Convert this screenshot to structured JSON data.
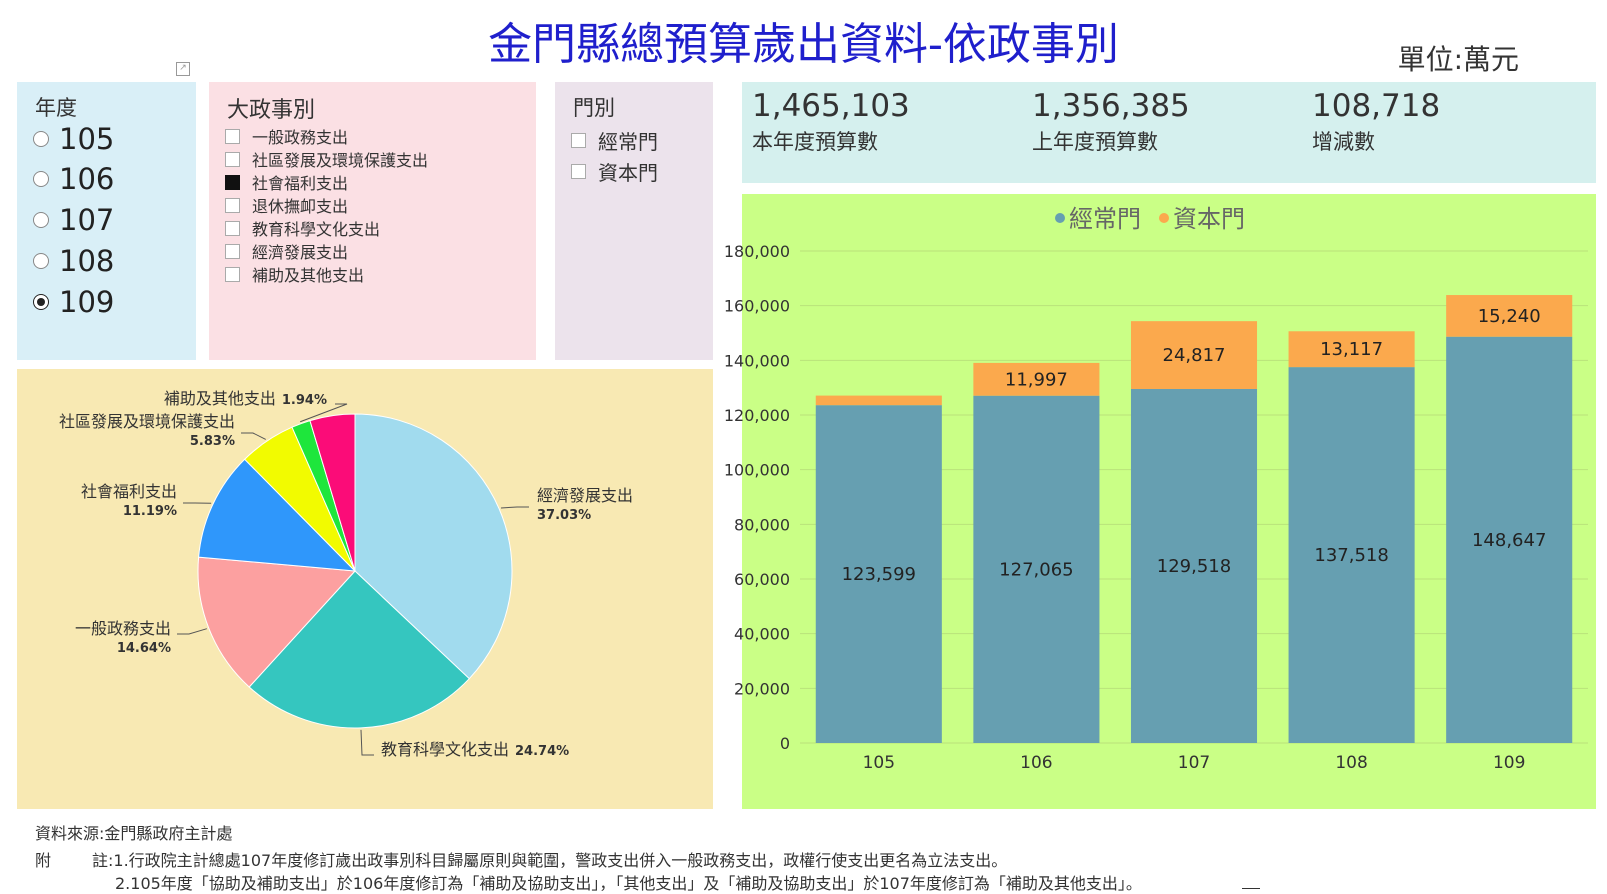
{
  "header": {
    "title": "金門縣總預算歲出資料-依政事別",
    "unit": "單位:萬元"
  },
  "year_slicer": {
    "title": "年度",
    "items": [
      {
        "label": "105",
        "selected": false
      },
      {
        "label": "106",
        "selected": false
      },
      {
        "label": "107",
        "selected": false
      },
      {
        "label": "108",
        "selected": false
      },
      {
        "label": "109",
        "selected": true
      }
    ]
  },
  "policy_slicer": {
    "title": "大政事別",
    "items": [
      {
        "label": "一般政務支出",
        "checked": false
      },
      {
        "label": "社區發展及環境保護支出",
        "checked": false
      },
      {
        "label": "社會福利支出",
        "checked": true
      },
      {
        "label": "退休撫卹支出",
        "checked": false
      },
      {
        "label": "教育科學文化支出",
        "checked": false
      },
      {
        "label": "經濟發展支出",
        "checked": false
      },
      {
        "label": "補助及其他支出",
        "checked": false
      }
    ]
  },
  "type_slicer": {
    "title": "門別",
    "items": [
      {
        "label": "經常門",
        "checked": false
      },
      {
        "label": "資本門",
        "checked": false
      }
    ]
  },
  "kpis": [
    {
      "value": "1,465,103",
      "label": "本年度預算數"
    },
    {
      "value": "1,356,385",
      "label": "上年度預算數"
    },
    {
      "value": "108,718",
      "label": "增減數"
    }
  ],
  "footer": {
    "source": "資料來源:金門縣政府主計處",
    "note_prefix": "附",
    "note1": "註:1.行政院主計總處107年度修訂歲出政事別科目歸屬原則與範圍，警政支出併入一般政務支出，政權行使支出更名為立法支出。",
    "note2": "2.105年度「協助及補助支出」於106年度修訂為「補助及協助支出」，「其他支出」及「補助及協助支出」於107年度修訂為「補助及其他支出」。"
  },
  "chart_data": [
    {
      "type": "pie",
      "slices": [
        {
          "label": "經濟發展支出",
          "value": 37.03,
          "pct_label": "37.03%",
          "color": "#a1dbee"
        },
        {
          "label": "教育科學文化支出",
          "value": 24.74,
          "pct_label": "24.74%",
          "color": "#35c6bf"
        },
        {
          "label": "一般政務支出",
          "value": 14.64,
          "pct_label": "14.64%",
          "color": "#fca0a0"
        },
        {
          "label": "社會福利支出",
          "value": 11.19,
          "pct_label": "11.19%",
          "color": "#2f97fb"
        },
        {
          "label": "社區發展及環境保護支出",
          "value": 5.83,
          "pct_label": "5.83%",
          "color": "#f2fb00"
        },
        {
          "label": "補助及其他支出",
          "value": 1.94,
          "pct_label": "1.94%",
          "color": "#1ee63c"
        },
        {
          "label": "",
          "value": 4.63,
          "pct_label": "",
          "color": "#fb0c78"
        }
      ]
    },
    {
      "type": "bar",
      "stacked": true,
      "categories": [
        "105",
        "106",
        "107",
        "108",
        "109"
      ],
      "series": [
        {
          "name": "經常門",
          "values": [
            123599,
            127065,
            129518,
            137518,
            148647
          ],
          "labels": [
            "123,599",
            "127,065",
            "129,518",
            "137,518",
            "148,647"
          ],
          "color": "#669fb1"
        },
        {
          "name": "資本門",
          "values": [
            3500,
            11997,
            24817,
            13117,
            15240
          ],
          "labels": [
            "",
            "11,997",
            "24,817",
            "13,117",
            "15,240"
          ],
          "color": "#fba94d"
        }
      ],
      "ylim": [
        0,
        180000
      ],
      "yticks": [
        "0",
        "20,000",
        "40,000",
        "60,000",
        "80,000",
        "100,000",
        "120,000",
        "140,000",
        "160,000",
        "180,000"
      ],
      "legend": "top-center",
      "grid": true
    }
  ]
}
